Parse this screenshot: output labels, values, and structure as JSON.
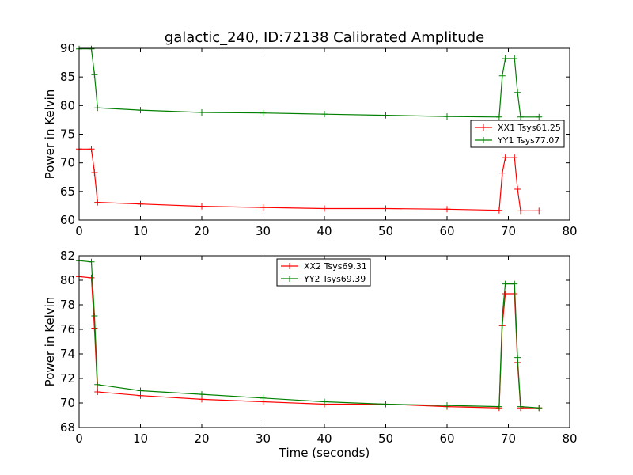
{
  "figure": {
    "title": "galactic_240, ID:72138 Calibrated Amplitude"
  },
  "chart_data": [
    {
      "type": "line",
      "title": "galactic_240, ID:72138 Calibrated Amplitude",
      "xlabel": "",
      "ylabel": "Power in Kelvin",
      "xlim": [
        0,
        80
      ],
      "ylim": [
        60,
        90
      ],
      "xticks": [
        0,
        10,
        20,
        30,
        40,
        50,
        60,
        70,
        80
      ],
      "yticks": [
        60,
        65,
        70,
        75,
        80,
        85,
        90
      ],
      "grid": false,
      "legend_position": "center-right",
      "series": [
        {
          "name": "XX1 Tsys61.25",
          "color": "#ff0000",
          "marker": "+",
          "x": [
            0,
            2,
            2.5,
            3,
            10,
            20,
            30,
            40,
            50,
            60,
            68.5,
            69,
            69.5,
            71,
            71.5,
            72,
            75
          ],
          "y": [
            72.4,
            72.4,
            68.3,
            63.1,
            62.8,
            62.4,
            62.2,
            62.0,
            62.0,
            61.9,
            61.7,
            68.2,
            70.9,
            70.9,
            65.4,
            61.6,
            61.6
          ]
        },
        {
          "name": "YY1 Tsys77.07",
          "color": "#008000",
          "marker": "+",
          "x": [
            0,
            2,
            2.5,
            3,
            10,
            20,
            30,
            40,
            50,
            60,
            68.5,
            69,
            69.5,
            71,
            71.5,
            72,
            75
          ],
          "y": [
            89.9,
            89.9,
            85.4,
            79.6,
            79.2,
            78.8,
            78.7,
            78.5,
            78.3,
            78.1,
            78.0,
            85.2,
            88.2,
            88.2,
            82.3,
            78.0,
            78.0
          ]
        }
      ]
    },
    {
      "type": "line",
      "title": "",
      "xlabel": "Time (seconds)",
      "ylabel": "Power in Kelvin",
      "xlim": [
        0,
        80
      ],
      "ylim": [
        68,
        82
      ],
      "xticks": [
        0,
        10,
        20,
        30,
        40,
        50,
        60,
        70,
        80
      ],
      "yticks": [
        68,
        70,
        72,
        74,
        76,
        78,
        80,
        82
      ],
      "grid": false,
      "legend_position": "top-center",
      "series": [
        {
          "name": "XX2 Tsys69.31",
          "color": "#ff0000",
          "marker": "+",
          "x": [
            0,
            2,
            2.5,
            3,
            10,
            20,
            30,
            40,
            50,
            60,
            68.5,
            69,
            69.5,
            71,
            71.5,
            72,
            75
          ],
          "y": [
            80.3,
            80.2,
            76.1,
            70.9,
            70.6,
            70.3,
            70.1,
            69.9,
            69.9,
            69.7,
            69.6,
            76.3,
            78.9,
            78.9,
            73.3,
            69.6,
            69.6
          ]
        },
        {
          "name": "YY2 Tsys69.39",
          "color": "#008000",
          "marker": "+",
          "x": [
            0,
            2,
            2.5,
            3,
            10,
            20,
            30,
            40,
            50,
            60,
            68.5,
            69,
            69.5,
            71,
            71.5,
            72,
            75
          ],
          "y": [
            81.6,
            81.5,
            77.1,
            71.5,
            71.0,
            70.7,
            70.4,
            70.1,
            69.9,
            69.8,
            69.7,
            77.0,
            79.7,
            79.7,
            73.7,
            69.7,
            69.6
          ]
        }
      ]
    }
  ]
}
